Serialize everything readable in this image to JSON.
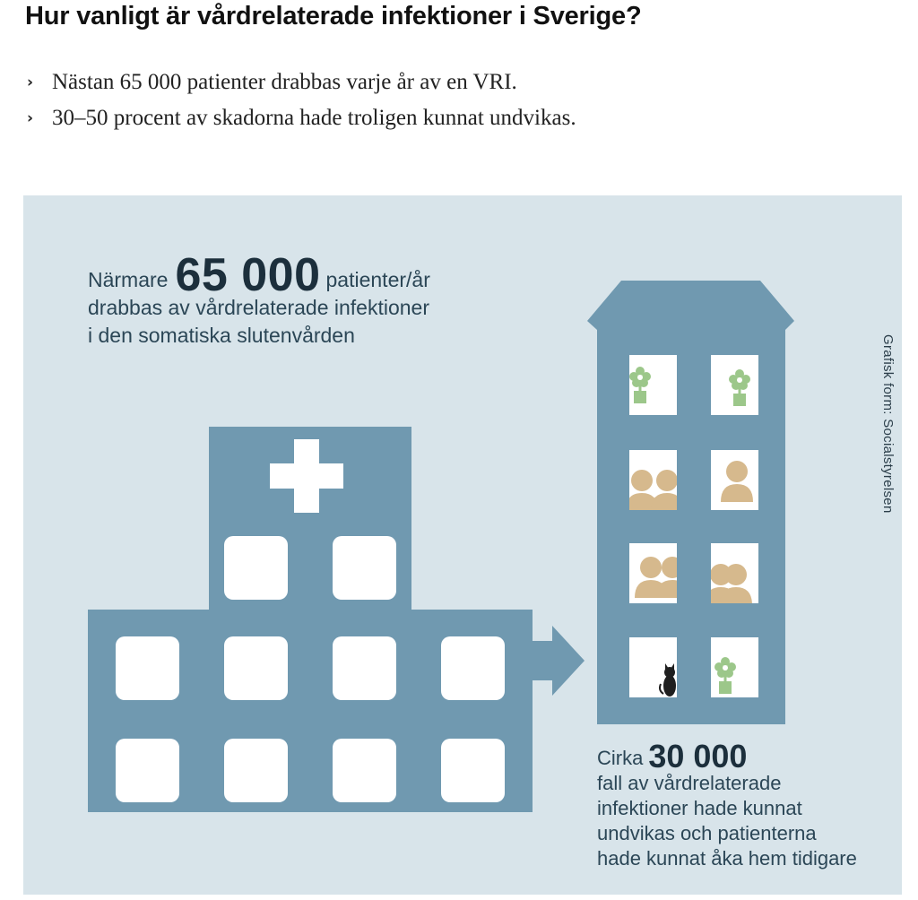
{
  "heading": "Hur vanligt är vårdrelaterade infektioner i Sverige?",
  "bullets": [
    "Nästan 65 000 patienter drabbas varje år av en VRI.",
    "30–50 procent av skadorna hade troligen kunnat undvikas."
  ],
  "infographic": {
    "top_text": {
      "prefix": "Närmare",
      "number": "65 000",
      "suffix": "patienter/år",
      "line2": "drabbas av vårdrelaterade infektioner",
      "line3": "i den somatiska slutenvården"
    },
    "bottom_text": {
      "prefix": "Cirka",
      "number": "30 000",
      "line2": "fall av vårdrelaterade",
      "line3": "infektioner hade kunnat",
      "line4": "undvikas och patienterna",
      "line5": "hade kunnat åka hem tidigare"
    },
    "credit": "Grafisk form: Socialstyrelsen",
    "icons": [
      "hospital-building-icon",
      "cross-icon",
      "arrow-right-icon",
      "house-building-icon",
      "plant-icon",
      "people-icon",
      "person-icon",
      "cat-icon"
    ]
  },
  "colors": {
    "panel_bg": "#d8e4ea",
    "building": "#7099b0",
    "window": "#ffffff",
    "people": "#d6b98d",
    "plant": "#9cc78a",
    "text": "#2b4656"
  }
}
